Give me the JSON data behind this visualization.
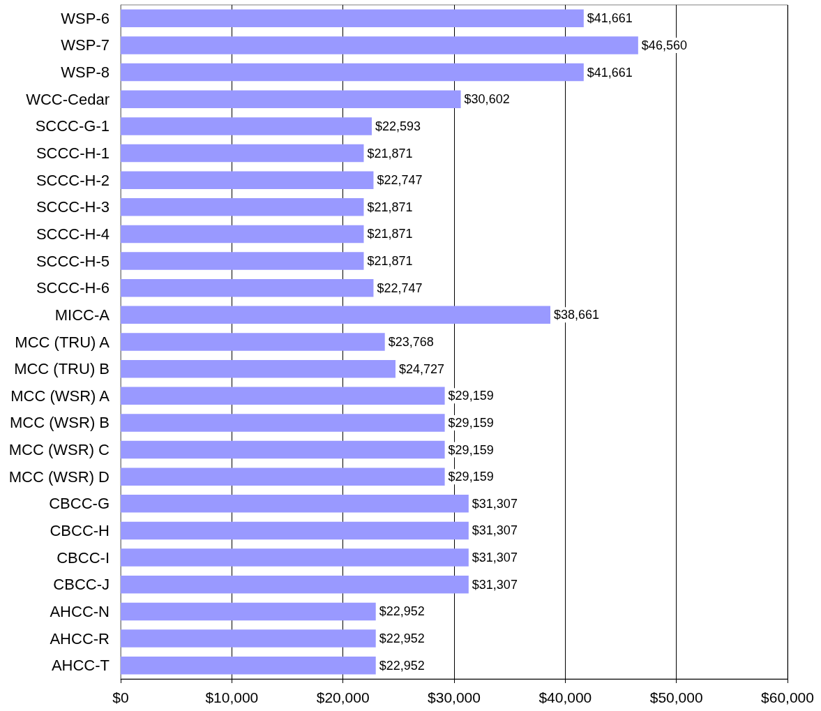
{
  "chart_data": {
    "type": "bar",
    "orientation": "horizontal",
    "categories": [
      "WSP-6",
      "WSP-7",
      "WSP-8",
      "WCC-Cedar",
      "SCCC-G-1",
      "SCCC-H-1",
      "SCCC-H-2",
      "SCCC-H-3",
      "SCCC-H-4",
      "SCCC-H-5",
      "SCCC-H-6",
      "MICC-A",
      "MCC (TRU) A",
      "MCC (TRU) B",
      "MCC (WSR) A",
      "MCC (WSR) B",
      "MCC (WSR) C",
      "MCC (WSR) D",
      "CBCC-G",
      "CBCC-H",
      "CBCC-I",
      "CBCC-J",
      "AHCC-N",
      "AHCC-R",
      "AHCC-T"
    ],
    "values": [
      41661,
      46560,
      41661,
      30602,
      22593,
      21871,
      22747,
      21871,
      21871,
      21871,
      22747,
      38661,
      23768,
      24727,
      29159,
      29159,
      29159,
      29159,
      31307,
      31307,
      31307,
      31307,
      22952,
      22952,
      22952
    ],
    "value_labels": [
      "$41,661",
      "$46,560",
      "$41,661",
      "$30,602",
      "$22,593",
      "$21,871",
      "$22,747",
      "$21,871",
      "$21,871",
      "$21,871",
      "$22,747",
      "$38,661",
      "$23,768",
      "$24,727",
      "$29,159",
      "$29,159",
      "$29,159",
      "$29,159",
      "$31,307",
      "$31,307",
      "$31,307",
      "$31,307",
      "$22,952",
      "$22,952",
      "$22,952"
    ],
    "color": "#9999ff",
    "xlim": [
      0,
      60000
    ],
    "xticks": [
      {
        "value": 0,
        "label": "$0"
      },
      {
        "value": 10000,
        "label": "$10,000"
      },
      {
        "value": 20000,
        "label": "$20,000"
      },
      {
        "value": 30000,
        "label": "$30,000"
      },
      {
        "value": 40000,
        "label": "$40,000"
      },
      {
        "value": 50000,
        "label": "$50,000"
      },
      {
        "value": 60000,
        "label": "$60,000"
      }
    ],
    "grid": "x"
  }
}
